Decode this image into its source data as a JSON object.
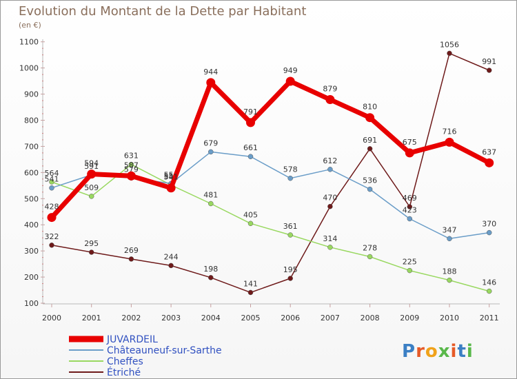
{
  "chart_data": {
    "type": "line",
    "title": "Evolution du Montant de la Dette par Habitant",
    "subtitle": "(en €)",
    "x": [
      "2000",
      "2001",
      "2002",
      "2003",
      "2004",
      "2005",
      "2006",
      "2007",
      "2008",
      "2009",
      "2010",
      "2011"
    ],
    "y_ticks": [
      "100",
      "200",
      "300",
      "400",
      "500",
      "600",
      "700",
      "800",
      "900",
      "1000",
      "1100"
    ],
    "ylim": [
      100,
      1100
    ],
    "grid": false,
    "legend_position": "bottom-left",
    "series": [
      {
        "name": "JUVARDEIL",
        "color": "#e80000",
        "values": [
          428,
          594,
          587,
          541,
          944,
          791,
          949,
          879,
          810,
          675,
          716,
          637
        ],
        "labels": [
          "428",
          "594",
          "587",
          "541",
          "944",
          "791",
          "949",
          "879",
          "810",
          "675",
          "716",
          "637"
        ]
      },
      {
        "name": "Châteauneuf-sur-Sarthe",
        "color": "#6a9dc8",
        "values": [
          541,
          591,
          579,
          558,
          679,
          661,
          578,
          612,
          536,
          423,
          347,
          370
        ],
        "labels": [
          "541",
          "591",
          "579",
          "558",
          "679",
          "661",
          "578",
          "612",
          "536",
          "423",
          "347",
          "370"
        ]
      },
      {
        "name": "Cheffes",
        "color": "#99d860",
        "values": [
          564,
          509,
          631,
          552,
          481,
          405,
          361,
          314,
          278,
          225,
          188,
          146
        ],
        "labels": [
          "564",
          "509",
          "631",
          "552",
          "481",
          "405",
          "361",
          "314",
          "278",
          "225",
          "188",
          "146"
        ]
      },
      {
        "name": "Étriché",
        "color": "#6e1a1a",
        "values": [
          322,
          295,
          269,
          244,
          198,
          141,
          195,
          470,
          691,
          469,
          1056,
          991
        ],
        "labels": [
          "322",
          "295",
          "269",
          "244",
          "198",
          "141",
          "195",
          "470",
          "691",
          "469",
          "1056",
          "991"
        ]
      }
    ]
  },
  "branding": {
    "logo_text": "Proxiti"
  }
}
